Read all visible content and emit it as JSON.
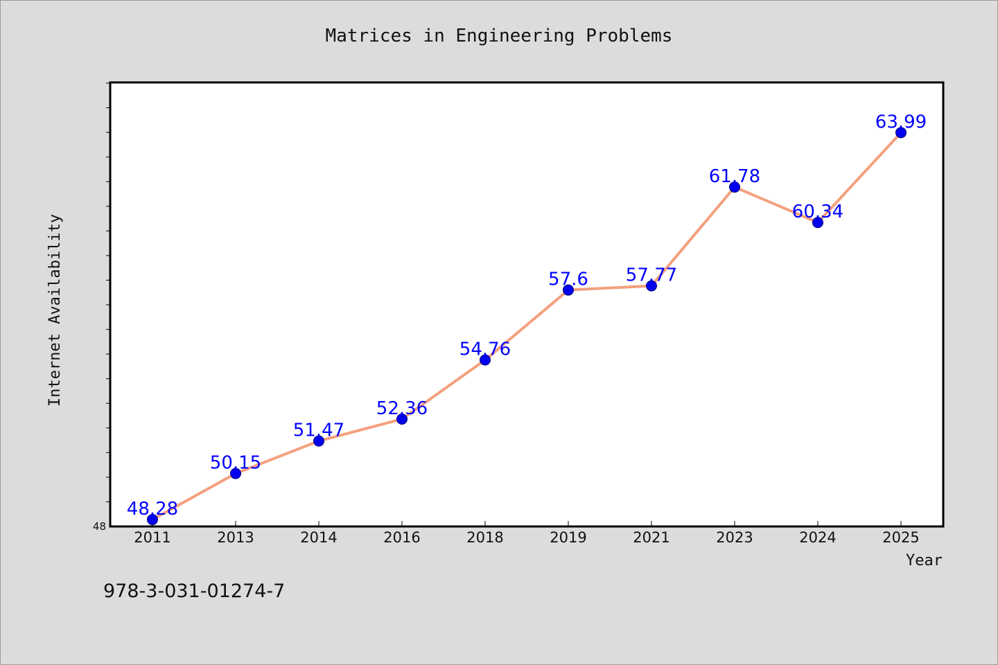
{
  "chart_data": {
    "type": "line",
    "title": "Matrices in Engineering Problems",
    "xlabel": "Year",
    "ylabel": "Internet Availability",
    "categories": [
      "2011",
      "2013",
      "2014",
      "2016",
      "2018",
      "2019",
      "2021",
      "2023",
      "2024",
      "2025"
    ],
    "series": [
      {
        "values": [
          48.28,
          50.15,
          51.47,
          52.36,
          54.76,
          57.6,
          57.77,
          61.78,
          60.34,
          63.99
        ]
      }
    ],
    "data_labels": [
      "48.28",
      "50.15",
      "51.47",
      "52.36",
      "54.76",
      "57.6",
      "57.77",
      "61.78",
      "60.34",
      "63.99"
    ],
    "ylim": [
      48,
      66
    ],
    "y_tick_labels": [
      "48"
    ],
    "y_minor_step": 1,
    "grid": false,
    "line_color": "#f4a07e",
    "marker_color": "#0000ee",
    "label_color": "#0000ff",
    "background": "#dcdcdc",
    "plot_background": "#ffffff"
  },
  "footer": {
    "isbn": "978-3-031-01274-7"
  }
}
